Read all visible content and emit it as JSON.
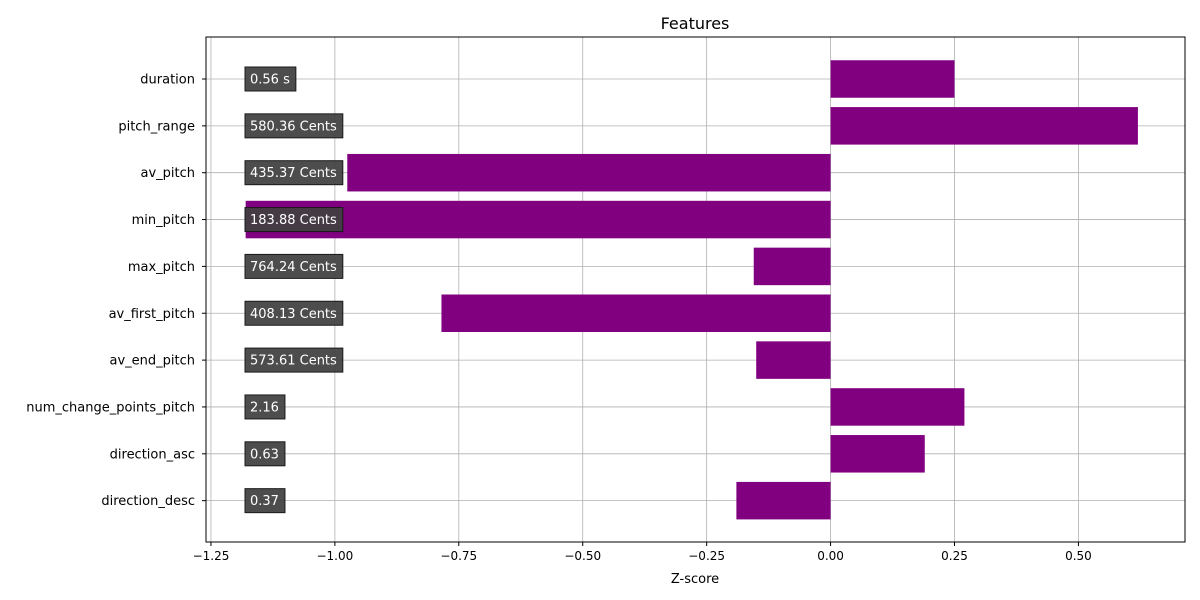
{
  "chart_data": {
    "type": "bar",
    "orientation": "horizontal",
    "title": "Features",
    "xlabel": "Z-score",
    "ylabel": "",
    "xlim": [
      -1.26,
      0.715
    ],
    "xticks": [
      -1.25,
      -1.0,
      -0.75,
      -0.5,
      -0.25,
      0.0,
      0.25,
      0.5
    ],
    "xtick_labels": [
      "−1.25",
      "−1.00",
      "−0.75",
      "−0.50",
      "−0.25",
      "0.00",
      "0.25",
      "0.50"
    ],
    "grid": true,
    "bar_color": "#800080",
    "label_box_color": "#404040",
    "categories": [
      "duration",
      "pitch_range",
      "av_pitch",
      "min_pitch",
      "max_pitch",
      "av_first_pitch",
      "av_end_pitch",
      "num_change_points_pitch",
      "direction_asc",
      "direction_desc"
    ],
    "values": [
      0.25,
      0.62,
      -0.975,
      -1.18,
      -0.155,
      -0.785,
      -0.15,
      0.27,
      0.19,
      -0.19
    ],
    "value_labels": [
      "0.56 s",
      "580.36 Cents",
      "435.37 Cents",
      "183.88 Cents",
      "764.24 Cents",
      "408.13 Cents",
      "573.61 Cents",
      "2.16",
      "0.63",
      "0.37"
    ]
  }
}
